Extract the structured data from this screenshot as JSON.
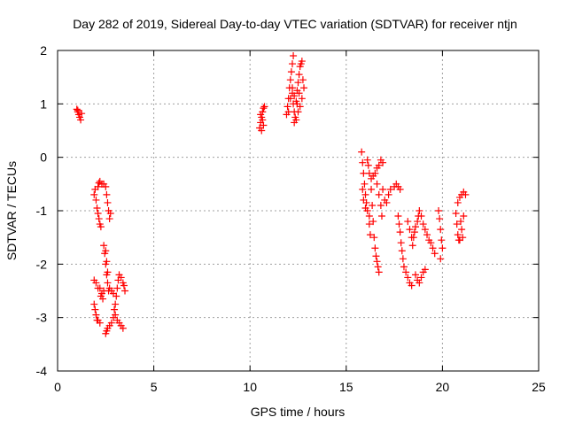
{
  "chart_data": {
    "type": "scatter",
    "title": "Day 282 of 2019, Sidereal Day-to-day VTEC variation (SDTVAR) for receiver ntjn",
    "xlabel": "GPS time / hours",
    "ylabel": "SDTVAR / TECUs",
    "xlim": [
      0,
      25
    ],
    "ylim": [
      -4,
      2
    ],
    "xticks": [
      0,
      5,
      10,
      15,
      20,
      25
    ],
    "yticks": [
      -4,
      -3,
      -2,
      -1,
      0,
      1,
      2
    ],
    "grid": true,
    "grid_style": "dotted",
    "marker": "+",
    "marker_color": "#ff0000",
    "series": [
      {
        "points": [
          [
            1.0,
            0.9
          ],
          [
            1.05,
            0.85
          ],
          [
            1.1,
            0.8
          ],
          [
            1.15,
            0.75
          ],
          [
            1.2,
            0.7
          ],
          [
            1.25,
            0.82
          ],
          [
            1.05,
            0.88
          ],
          [
            1.9,
            -0.7
          ],
          [
            1.95,
            -0.6
          ],
          [
            2.0,
            -0.8
          ],
          [
            2.05,
            -0.95
          ],
          [
            2.1,
            -1.05
          ],
          [
            2.15,
            -1.15
          ],
          [
            2.2,
            -1.25
          ],
          [
            2.25,
            -1.3
          ],
          [
            2.1,
            -0.55
          ],
          [
            2.15,
            -0.48
          ],
          [
            2.2,
            -0.45
          ],
          [
            2.3,
            -0.5
          ],
          [
            2.4,
            -0.5
          ],
          [
            2.5,
            -0.55
          ],
          [
            2.55,
            -0.7
          ],
          [
            2.6,
            -0.85
          ],
          [
            2.65,
            -1.0
          ],
          [
            2.7,
            -1.15
          ],
          [
            2.75,
            -1.05
          ],
          [
            2.4,
            -1.65
          ],
          [
            2.45,
            -1.8
          ],
          [
            2.5,
            -2.0
          ],
          [
            2.55,
            -2.2
          ],
          [
            2.6,
            -2.35
          ],
          [
            2.65,
            -2.5
          ],
          [
            2.7,
            -2.45
          ],
          [
            2.5,
            -1.75
          ],
          [
            2.55,
            -1.95
          ],
          [
            2.6,
            -2.15
          ],
          [
            2.2,
            -2.45
          ],
          [
            2.3,
            -2.55
          ],
          [
            2.4,
            -2.5
          ],
          [
            1.9,
            -2.3
          ],
          [
            2.0,
            -2.35
          ],
          [
            2.1,
            -2.45
          ],
          [
            2.25,
            -2.6
          ],
          [
            2.35,
            -2.65
          ],
          [
            1.9,
            -2.75
          ],
          [
            1.95,
            -2.85
          ],
          [
            2.0,
            -2.95
          ],
          [
            2.05,
            -3.05
          ],
          [
            2.1,
            -3.05
          ],
          [
            2.2,
            -3.1
          ],
          [
            2.5,
            -3.3
          ],
          [
            2.55,
            -3.25
          ],
          [
            2.6,
            -3.2
          ],
          [
            2.7,
            -3.15
          ],
          [
            2.8,
            -3.1
          ],
          [
            2.9,
            -3.0
          ],
          [
            2.95,
            -2.85
          ],
          [
            3.0,
            -2.75
          ],
          [
            3.05,
            -2.6
          ],
          [
            3.1,
            -2.45
          ],
          [
            3.15,
            -2.3
          ],
          [
            3.2,
            -2.2
          ],
          [
            3.3,
            -2.25
          ],
          [
            3.4,
            -2.35
          ],
          [
            3.5,
            -2.5
          ],
          [
            3.45,
            -2.4
          ],
          [
            3.0,
            -2.95
          ],
          [
            3.1,
            -3.05
          ],
          [
            3.2,
            -3.1
          ],
          [
            3.3,
            -3.15
          ],
          [
            3.4,
            -3.2
          ],
          [
            2.8,
            -2.5
          ],
          [
            2.9,
            -2.55
          ],
          [
            10.5,
            0.55
          ],
          [
            10.55,
            0.65
          ],
          [
            10.6,
            0.75
          ],
          [
            10.65,
            0.85
          ],
          [
            10.7,
            0.92
          ],
          [
            10.75,
            0.95
          ],
          [
            10.6,
            0.5
          ],
          [
            10.7,
            0.6
          ],
          [
            10.55,
            0.8
          ],
          [
            10.65,
            0.7
          ],
          [
            11.9,
            0.8
          ],
          [
            11.95,
            0.95
          ],
          [
            12.0,
            1.1
          ],
          [
            12.05,
            1.3
          ],
          [
            12.1,
            1.45
          ],
          [
            12.15,
            1.6
          ],
          [
            12.2,
            1.75
          ],
          [
            12.25,
            1.9
          ],
          [
            12.2,
            1.2
          ],
          [
            12.25,
            1.0
          ],
          [
            12.3,
            0.85
          ],
          [
            12.35,
            0.75
          ],
          [
            12.4,
            1.05
          ],
          [
            12.45,
            1.25
          ],
          [
            12.5,
            1.4
          ],
          [
            12.55,
            1.55
          ],
          [
            12.6,
            1.7
          ],
          [
            12.65,
            1.75
          ],
          [
            12.7,
            1.8
          ],
          [
            12.75,
            1.45
          ],
          [
            12.8,
            1.3
          ],
          [
            12.7,
            1.1
          ],
          [
            12.6,
            0.95
          ],
          [
            12.5,
            0.85
          ],
          [
            12.4,
            0.7
          ],
          [
            12.3,
            0.65
          ],
          [
            12.0,
            0.85
          ],
          [
            12.1,
            1.1
          ],
          [
            12.2,
            1.3
          ],
          [
            12.3,
            1.15
          ],
          [
            12.45,
            1.0
          ],
          [
            12.55,
            1.2
          ],
          [
            15.8,
            0.1
          ],
          [
            15.85,
            -0.1
          ],
          [
            15.9,
            -0.3
          ],
          [
            15.95,
            -0.5
          ],
          [
            16.0,
            -0.7
          ],
          [
            16.05,
            -0.85
          ],
          [
            15.85,
            -0.6
          ],
          [
            15.9,
            -0.8
          ],
          [
            16.0,
            -0.95
          ],
          [
            16.1,
            -1.0
          ],
          [
            16.2,
            -1.1
          ],
          [
            16.1,
            -0.05
          ],
          [
            16.15,
            -0.15
          ],
          [
            16.2,
            -0.3
          ],
          [
            16.3,
            -0.4
          ],
          [
            16.4,
            -0.35
          ],
          [
            16.5,
            -0.3
          ],
          [
            16.6,
            -0.2
          ],
          [
            16.7,
            -0.15
          ],
          [
            16.8,
            -0.05
          ],
          [
            16.9,
            -0.1
          ],
          [
            16.3,
            -0.6
          ],
          [
            16.35,
            -0.9
          ],
          [
            16.4,
            -1.2
          ],
          [
            16.45,
            -1.5
          ],
          [
            16.5,
            -1.7
          ],
          [
            16.55,
            -1.85
          ],
          [
            16.6,
            -1.95
          ],
          [
            16.65,
            -2.05
          ],
          [
            16.7,
            -2.15
          ],
          [
            16.2,
            -1.25
          ],
          [
            16.25,
            -1.45
          ],
          [
            16.6,
            -0.5
          ],
          [
            16.7,
            -0.7
          ],
          [
            16.8,
            -0.9
          ],
          [
            16.85,
            -1.1
          ],
          [
            16.9,
            -0.6
          ],
          [
            17.0,
            -0.8
          ],
          [
            17.1,
            -0.85
          ],
          [
            17.2,
            -0.7
          ],
          [
            17.3,
            -0.6
          ],
          [
            17.5,
            -0.55
          ],
          [
            17.6,
            -0.5
          ],
          [
            17.7,
            -0.55
          ],
          [
            17.8,
            -0.6
          ],
          [
            17.7,
            -1.1
          ],
          [
            17.75,
            -1.25
          ],
          [
            17.8,
            -1.4
          ],
          [
            17.85,
            -1.6
          ],
          [
            17.9,
            -1.75
          ],
          [
            17.95,
            -1.9
          ],
          [
            18.0,
            -2.05
          ],
          [
            18.1,
            -2.15
          ],
          [
            18.2,
            -2.25
          ],
          [
            18.3,
            -2.35
          ],
          [
            18.4,
            -2.4
          ],
          [
            18.2,
            -1.2
          ],
          [
            18.3,
            -1.35
          ],
          [
            18.4,
            -1.5
          ],
          [
            18.45,
            -1.65
          ],
          [
            18.5,
            -1.5
          ],
          [
            18.55,
            -1.4
          ],
          [
            18.6,
            -1.3
          ],
          [
            18.7,
            -1.2
          ],
          [
            18.75,
            -1.1
          ],
          [
            18.6,
            -2.2
          ],
          [
            18.7,
            -2.3
          ],
          [
            18.8,
            -2.35
          ],
          [
            18.9,
            -2.25
          ],
          [
            19.0,
            -2.15
          ],
          [
            19.1,
            -2.1
          ],
          [
            18.8,
            -1.0
          ],
          [
            18.9,
            -1.1
          ],
          [
            19.0,
            -1.25
          ],
          [
            19.1,
            -1.35
          ],
          [
            19.2,
            -1.45
          ],
          [
            19.3,
            -1.55
          ],
          [
            19.4,
            -1.6
          ],
          [
            19.5,
            -1.7
          ],
          [
            19.6,
            -1.8
          ],
          [
            19.8,
            -1.0
          ],
          [
            19.85,
            -1.15
          ],
          [
            19.9,
            -1.35
          ],
          [
            19.95,
            -1.55
          ],
          [
            20.0,
            -1.7
          ],
          [
            19.9,
            -1.9
          ],
          [
            20.7,
            -1.05
          ],
          [
            20.75,
            -1.25
          ],
          [
            20.8,
            -1.45
          ],
          [
            20.85,
            -1.55
          ],
          [
            20.95,
            -1.2
          ],
          [
            21.0,
            -1.35
          ],
          [
            21.05,
            -1.5
          ],
          [
            21.1,
            -1.1
          ],
          [
            20.8,
            -0.85
          ],
          [
            20.9,
            -0.75
          ],
          [
            21.0,
            -0.7
          ],
          [
            21.1,
            -0.65
          ],
          [
            21.2,
            -0.7
          ],
          [
            20.9,
            -1.55
          ]
        ]
      }
    ]
  }
}
